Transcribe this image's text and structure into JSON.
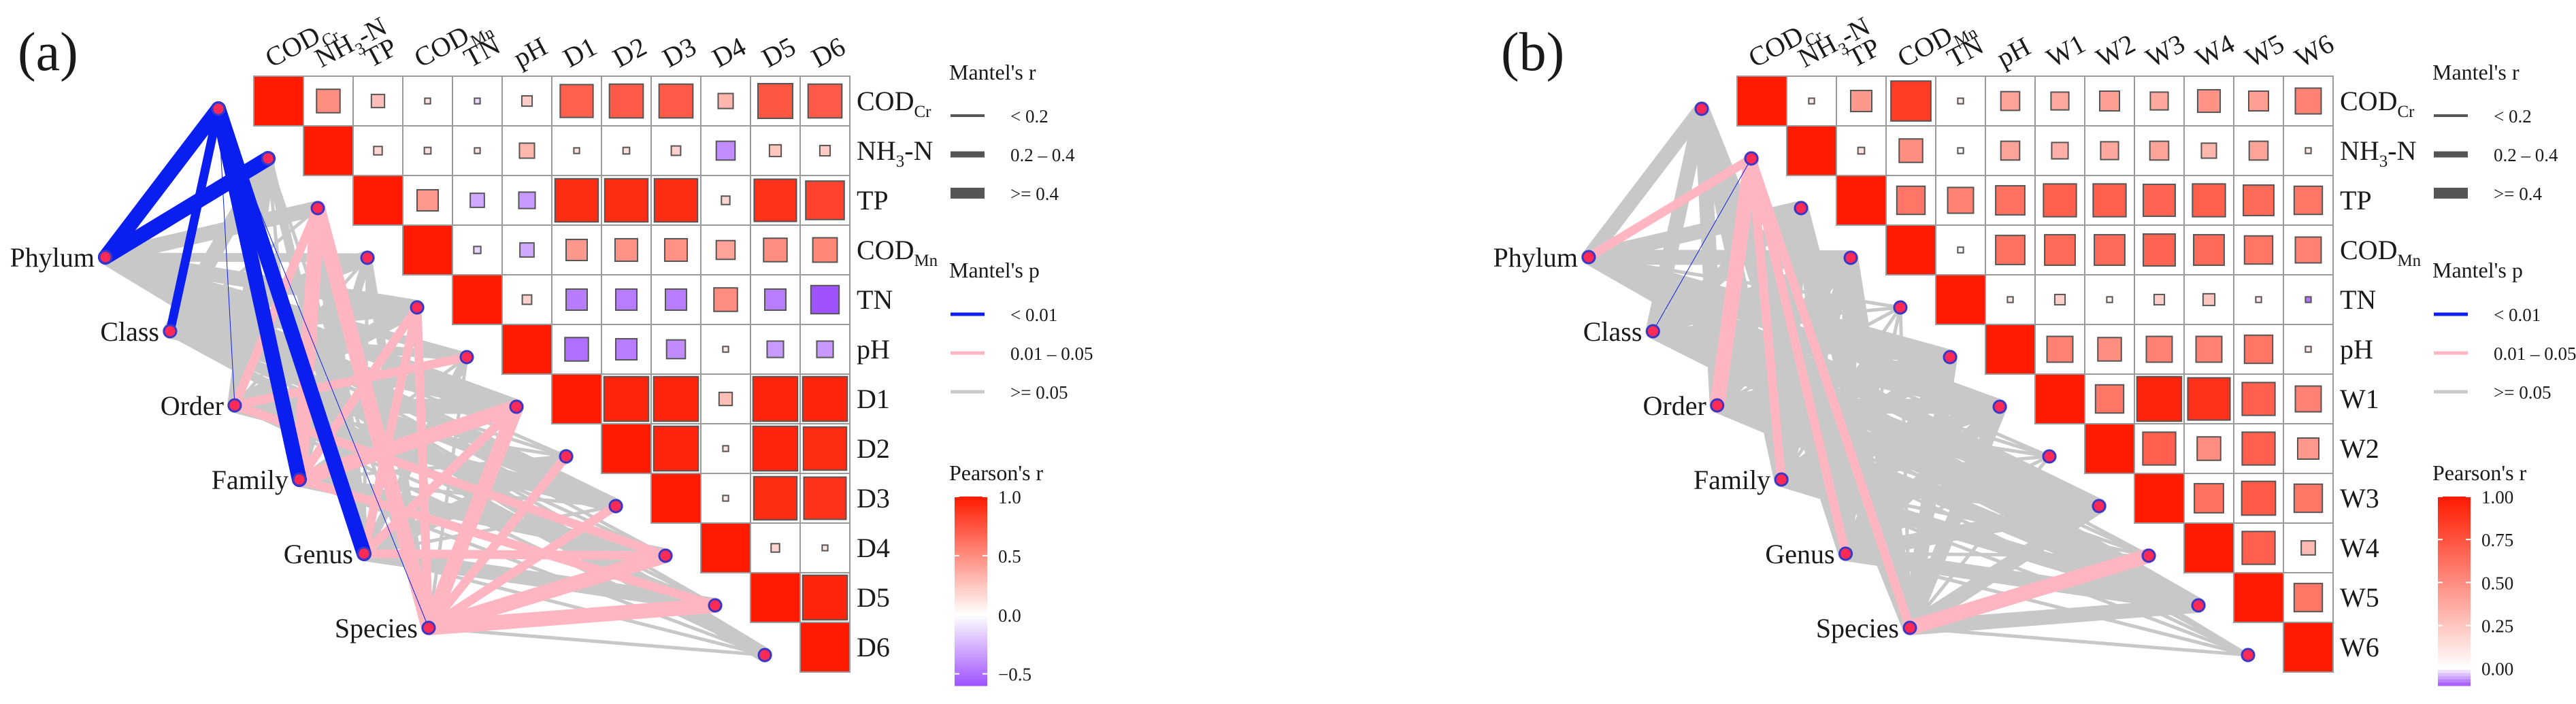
{
  "colors": {
    "pos": "#ff1a00",
    "neg": "#a052ff",
    "sig_low": "#0a1ef0",
    "sig_mid": "#ffb6c1",
    "sig_high": "#c8c8c8",
    "node_fill": "#ff2a55",
    "node_stroke": "#3838c8"
  },
  "chart_data": [
    {
      "type": "heatmap",
      "panel_label": "(a)",
      "variables": [
        "COD_Cr",
        "NH3-N",
        "TP",
        "COD_Mn",
        "TN",
        "pH",
        "D1",
        "D2",
        "D3",
        "D4",
        "D5",
        "D6"
      ],
      "labels": [
        {
          "main": "COD",
          "sub": "Cr"
        },
        {
          "main": "NH",
          "sub": "3",
          "tail": "-N"
        },
        {
          "main": "TP"
        },
        {
          "main": "COD",
          "sub": "Mn"
        },
        {
          "main": "TN"
        },
        {
          "main": "pH"
        },
        {
          "main": "D1"
        },
        {
          "main": "D2"
        },
        {
          "main": "D3"
        },
        {
          "main": "D4"
        },
        {
          "main": "D5"
        },
        {
          "main": "D6"
        }
      ],
      "correlations": [
        [
          0.5,
          0.28,
          0.12,
          -0.12,
          0.22,
          0.7,
          0.72,
          0.72,
          0.32,
          0.74,
          0.72
        ],
        [
          0.18,
          0.14,
          0.12,
          0.32,
          0.12,
          0.14,
          0.2,
          -0.4,
          0.25,
          0.22
        ],
        [
          0.45,
          -0.3,
          -0.35,
          0.92,
          0.92,
          0.92,
          0.18,
          0.9,
          0.82
        ],
        [
          -0.15,
          -0.3,
          0.45,
          0.48,
          0.48,
          0.4,
          0.5,
          0.52
        ],
        [
          0.2,
          -0.45,
          -0.45,
          -0.45,
          0.5,
          -0.45,
          -0.6
        ],
        [
          -0.5,
          -0.45,
          -0.4,
          0.1,
          -0.35,
          -0.35
        ],
        [
          0.95,
          0.95,
          0.28,
          0.95,
          0.95
        ],
        [
          0.95,
          0.12,
          0.95,
          0.92
        ],
        [
          0.1,
          0.92,
          0.9
        ],
        [
          0.18,
          0.12
        ],
        [
          0.95
        ]
      ],
      "groups": [
        "Phylum",
        "Class",
        "Order",
        "Family",
        "Genus",
        "Species"
      ],
      "mantel_edges": [
        [
          [
            "p",
            "w"
          ],
          [
            "p",
            "w"
          ],
          [
            "h",
            "w"
          ],
          [
            "h",
            "m"
          ],
          [
            "h",
            "w"
          ],
          [
            "h",
            "m"
          ],
          [
            "h",
            "w"
          ],
          [
            "h",
            "n"
          ],
          [
            "h",
            "w"
          ],
          [
            "h",
            "n"
          ],
          [
            "h",
            "n"
          ],
          [
            "h",
            "w"
          ]
        ],
        [
          [
            "p",
            "m"
          ],
          [
            "h",
            "w"
          ],
          [
            "h",
            "n"
          ],
          [
            "h",
            "w"
          ],
          [
            "h",
            "w"
          ],
          [
            "h",
            "m"
          ],
          [
            "h",
            "w"
          ],
          [
            "h",
            "n"
          ],
          [
            "h",
            "m"
          ],
          [
            "h",
            "n"
          ],
          [
            "h",
            "n"
          ],
          [
            "h",
            "m"
          ]
        ],
        [
          [
            "p",
            "s"
          ],
          [
            "h",
            "w"
          ],
          [
            "m",
            "m"
          ],
          [
            "h",
            "n"
          ],
          [
            "h",
            "w"
          ],
          [
            "m",
            "m"
          ],
          [
            "h",
            "w"
          ],
          [
            "h",
            "n"
          ],
          [
            "h",
            "w"
          ],
          [
            "m",
            "m"
          ],
          [
            "h",
            "n"
          ],
          [
            "h",
            "n"
          ]
        ],
        [
          [
            "p",
            "w"
          ],
          [
            "h",
            "n"
          ],
          [
            "m",
            "w"
          ],
          [
            "h",
            "m"
          ],
          [
            "m",
            "m"
          ],
          [
            "h",
            "n"
          ],
          [
            "m",
            "w"
          ],
          [
            "h",
            "n"
          ],
          [
            "h",
            "n"
          ],
          [
            "h",
            "w"
          ],
          [
            "m",
            "m"
          ],
          [
            "h",
            "n"
          ]
        ],
        [
          [
            "p",
            "w"
          ],
          [
            "h",
            "m"
          ],
          [
            "h",
            "w"
          ],
          [
            "h",
            "n"
          ],
          [
            "m",
            "m"
          ],
          [
            "h",
            "m"
          ],
          [
            "m",
            "m"
          ],
          [
            "h",
            "w"
          ],
          [
            "h",
            "n"
          ],
          [
            "m",
            "m"
          ],
          [
            "h",
            "w"
          ],
          [
            "h",
            "n"
          ]
        ],
        [
          [
            "p",
            "s"
          ],
          [
            "h",
            "n"
          ],
          [
            "m",
            "w"
          ],
          [
            "h",
            "m"
          ],
          [
            "m",
            "m"
          ],
          [
            "h",
            "n"
          ],
          [
            "m",
            "w"
          ],
          [
            "m",
            "m"
          ],
          [
            "m",
            "m"
          ],
          [
            "m",
            "w"
          ],
          [
            "m",
            "w"
          ],
          [
            "h",
            "n"
          ]
        ]
      ],
      "scale": {
        "title": "Pearson's r",
        "ticks": [
          "1.0",
          "0.5",
          "0.0",
          "−0.5"
        ],
        "tick_values": [
          1.0,
          0.5,
          0.0,
          -0.5
        ],
        "min": -0.6,
        "max": 1.0
      },
      "legend_r": {
        "title": "Mantel's r",
        "items": [
          "< 0.2",
          "0.2 – 0.4",
          ">= 0.4"
        ]
      },
      "legend_p": {
        "title": "Mantel's p",
        "items": [
          "< 0.01",
          "0.01 – 0.05",
          ">= 0.05"
        ]
      }
    },
    {
      "type": "heatmap",
      "panel_label": "(b)",
      "variables": [
        "COD_Cr",
        "NH3-N",
        "TP",
        "COD_Mn",
        "TN",
        "pH",
        "W1",
        "W2",
        "W3",
        "W4",
        "W5",
        "W6"
      ],
      "labels": [
        {
          "main": "COD",
          "sub": "Cr"
        },
        {
          "main": "NH",
          "sub": "3",
          "tail": "-N"
        },
        {
          "main": "TP"
        },
        {
          "main": "COD",
          "sub": "Mn"
        },
        {
          "main": "TN"
        },
        {
          "main": "pH"
        },
        {
          "main": "W1"
        },
        {
          "main": "W2"
        },
        {
          "main": "W3"
        },
        {
          "main": "W4"
        },
        {
          "main": "W5"
        },
        {
          "main": "W6"
        }
      ],
      "correlations": [
        [
          0.1,
          0.45,
          0.85,
          0.08,
          0.4,
          0.38,
          0.42,
          0.38,
          0.48,
          0.42,
          0.55
        ],
        [
          0.14,
          0.5,
          0.0,
          0.4,
          0.35,
          0.38,
          0.4,
          0.32,
          0.4,
          0.1
        ],
        [
          0.6,
          0.55,
          0.62,
          0.7,
          0.7,
          0.68,
          0.7,
          0.65,
          0.6
        ],
        [
          0.0,
          0.62,
          0.65,
          0.65,
          0.68,
          0.65,
          0.6,
          0.55
        ],
        [
          0.1,
          0.22,
          0.05,
          0.22,
          0.25,
          0.1,
          -0.12
        ],
        [
          0.55,
          0.5,
          0.55,
          0.55,
          0.6,
          0.08
        ],
        [
          0.6,
          0.95,
          0.9,
          0.7,
          0.55
        ],
        [
          0.7,
          0.5,
          0.7,
          0.45
        ],
        [
          0.62,
          0.72,
          0.6
        ],
        [
          0.7,
          0.3
        ],
        [
          0.6
        ]
      ],
      "groups": [
        "Phylum",
        "Class",
        "Order",
        "Family",
        "Genus",
        "Species"
      ],
      "mantel_edges": [
        [
          [
            "h",
            "w"
          ],
          [
            "m",
            "m"
          ],
          [
            "h",
            "w"
          ],
          [
            "h",
            "w"
          ],
          [
            "h",
            "n"
          ],
          [
            "h",
            "w"
          ],
          [
            "h",
            "w"
          ],
          [
            "h",
            "n"
          ],
          [
            "h",
            "w"
          ],
          [
            "h",
            "n"
          ],
          [
            "h",
            "w"
          ],
          [
            "h",
            "n"
          ]
        ],
        [
          [
            "h",
            "w"
          ],
          [
            "p",
            "s"
          ],
          [
            "h",
            "w"
          ],
          [
            "h",
            "w"
          ],
          [
            "h",
            "n"
          ],
          [
            "h",
            "w"
          ],
          [
            "h",
            "w"
          ],
          [
            "h",
            "n"
          ],
          [
            "h",
            "w"
          ],
          [
            "h",
            "n"
          ],
          [
            "h",
            "w"
          ],
          [
            "h",
            "n"
          ]
        ],
        [
          [
            "h",
            "w"
          ],
          [
            "m",
            "w"
          ],
          [
            "h",
            "w"
          ],
          [
            "h",
            "w"
          ],
          [
            "h",
            "n"
          ],
          [
            "h",
            "w"
          ],
          [
            "h",
            "w"
          ],
          [
            "h",
            "n"
          ],
          [
            "h",
            "w"
          ],
          [
            "h",
            "n"
          ],
          [
            "h",
            "w"
          ],
          [
            "h",
            "n"
          ]
        ],
        [
          [
            "h",
            "w"
          ],
          [
            "m",
            "m"
          ],
          [
            "h",
            "w"
          ],
          [
            "h",
            "w"
          ],
          [
            "h",
            "n"
          ],
          [
            "h",
            "w"
          ],
          [
            "h",
            "w"
          ],
          [
            "h",
            "n"
          ],
          [
            "h",
            "w"
          ],
          [
            "h",
            "n"
          ],
          [
            "h",
            "w"
          ],
          [
            "h",
            "n"
          ]
        ],
        [
          [
            "h",
            "w"
          ],
          [
            "m",
            "m"
          ],
          [
            "h",
            "w"
          ],
          [
            "h",
            "w"
          ],
          [
            "h",
            "n"
          ],
          [
            "h",
            "w"
          ],
          [
            "h",
            "w"
          ],
          [
            "h",
            "n"
          ],
          [
            "h",
            "w"
          ],
          [
            "h",
            "n"
          ],
          [
            "h",
            "w"
          ],
          [
            "h",
            "n"
          ]
        ],
        [
          [
            "h",
            "w"
          ],
          [
            "m",
            "m"
          ],
          [
            "h",
            "w"
          ],
          [
            "h",
            "w"
          ],
          [
            "h",
            "n"
          ],
          [
            "h",
            "w"
          ],
          [
            "h",
            "w"
          ],
          [
            "h",
            "n"
          ],
          [
            "h",
            "w"
          ],
          [
            "m",
            "w"
          ],
          [
            "h",
            "w"
          ],
          [
            "h",
            "n"
          ]
        ]
      ],
      "scale": {
        "title": "Pearson's r",
        "ticks": [
          "1.00",
          "0.75",
          "0.50",
          "0.25",
          "0.00"
        ],
        "tick_values": [
          1.0,
          0.75,
          0.5,
          0.25,
          0.0
        ],
        "min": -0.1,
        "max": 1.0
      },
      "legend_r": {
        "title": "Mantel's r",
        "items": [
          "< 0.2",
          "0.2 – 0.4",
          ">= 0.4"
        ]
      },
      "legend_p": {
        "title": "Mantel's p",
        "items": [
          "< 0.01",
          "0.01 – 0.05",
          ">= 0.05"
        ]
      }
    }
  ]
}
